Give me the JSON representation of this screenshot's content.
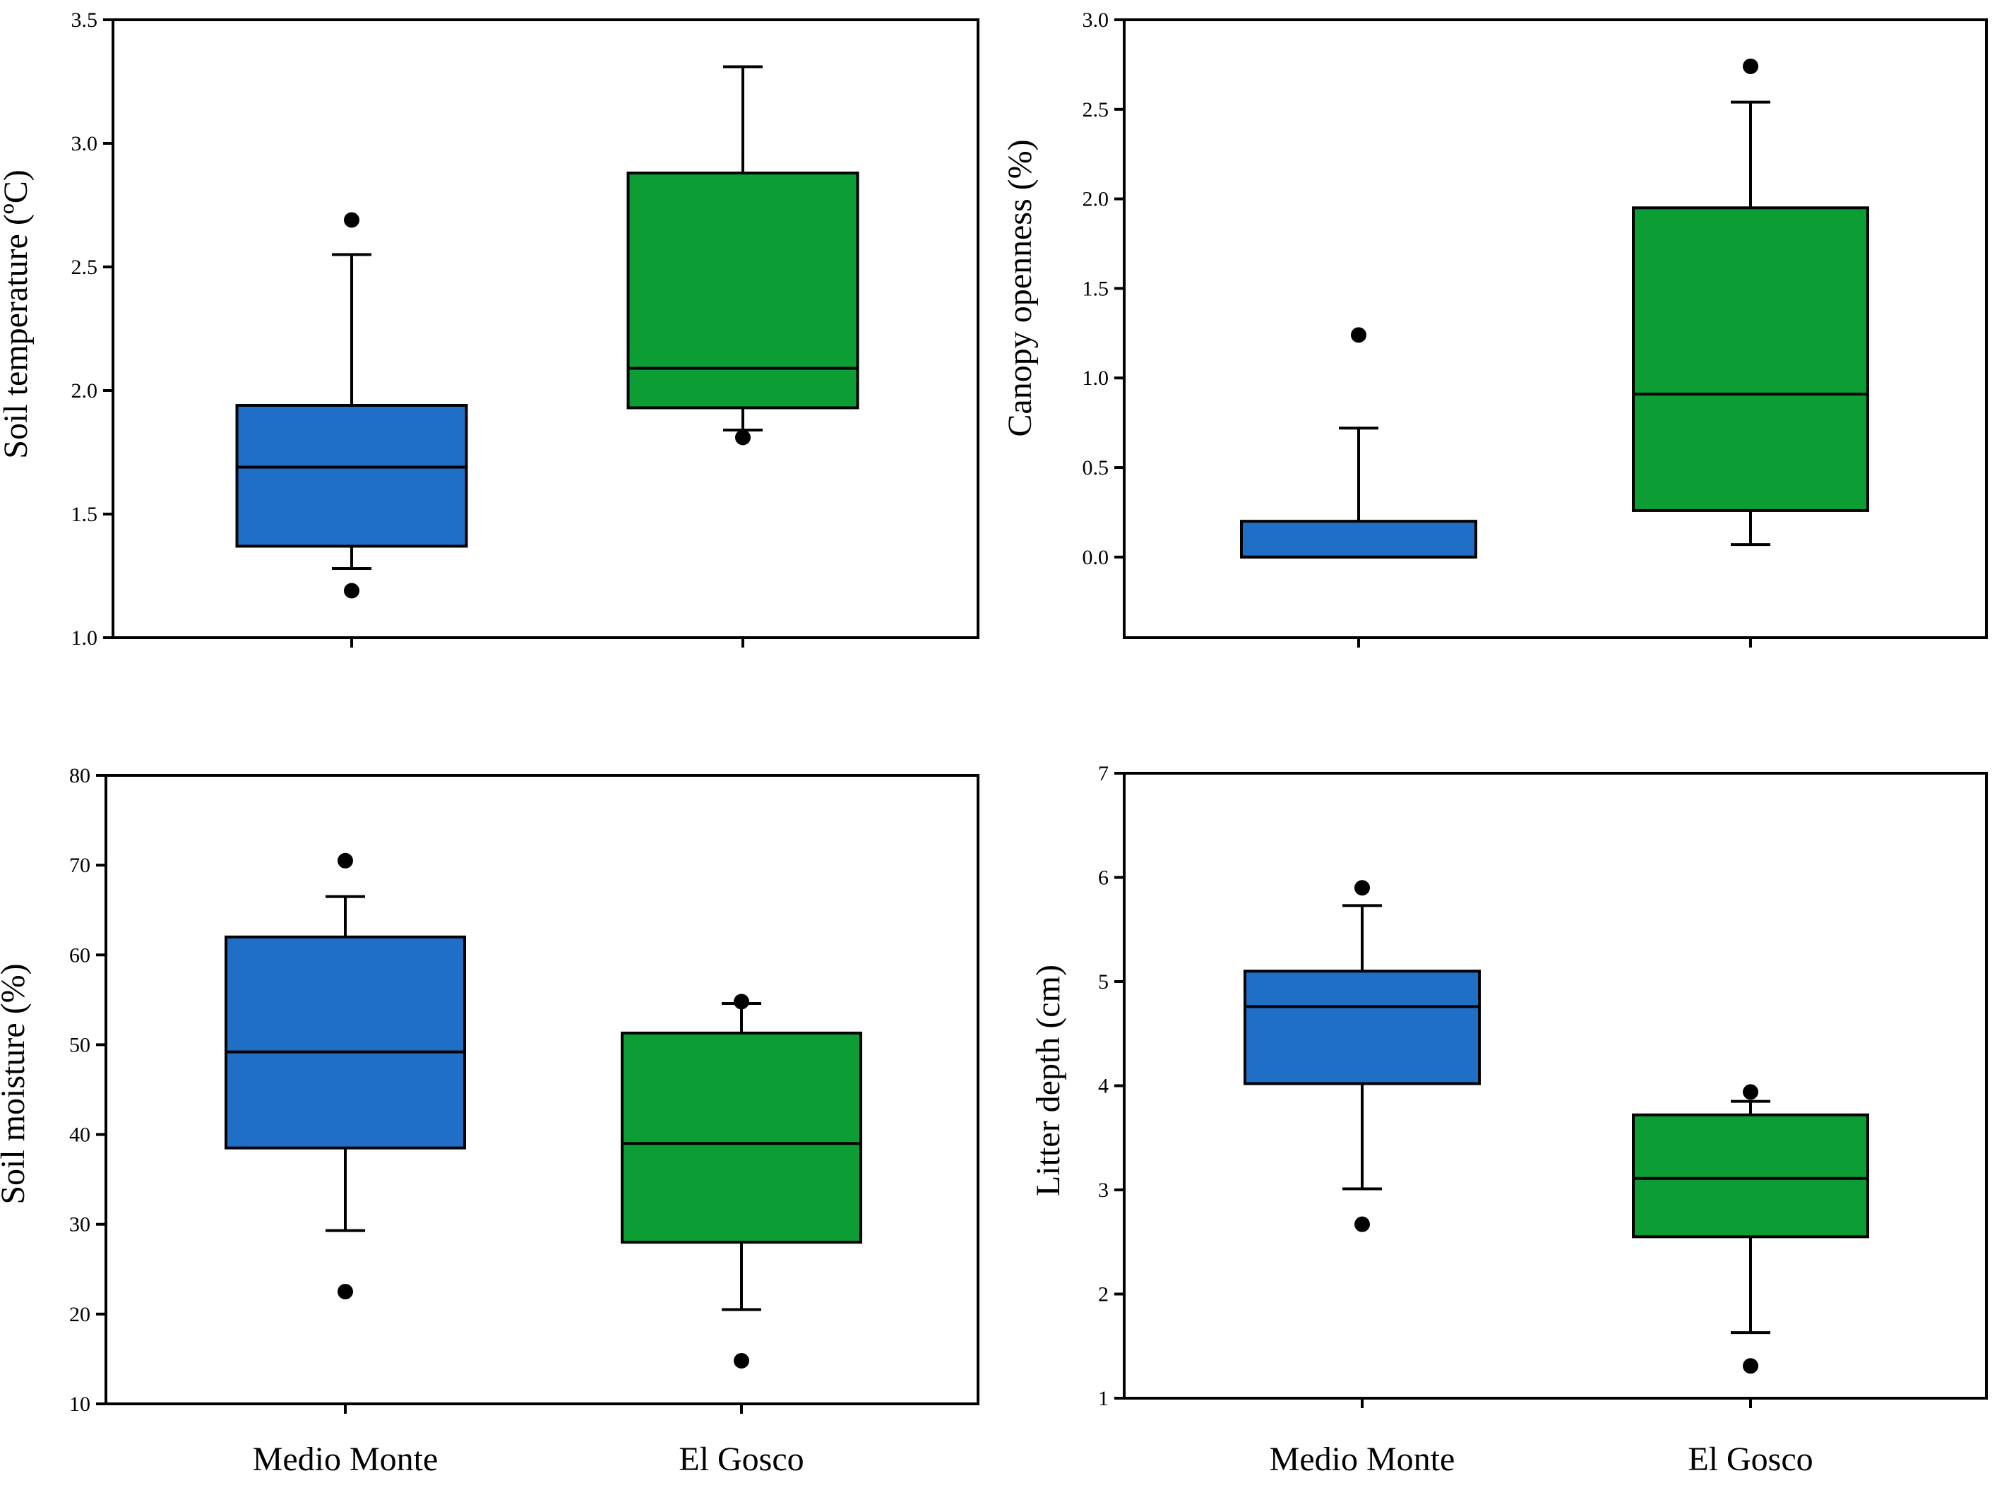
{
  "chart_data": [
    {
      "type": "box",
      "ylabel": "Soil temperature (ºC)",
      "ylim": [
        1.0,
        3.5
      ],
      "yticks": [
        "1.0",
        "1.5",
        "2.0",
        "2.5",
        "3.0",
        "3.5"
      ],
      "categories": [
        "Medio Monte",
        "El Gosco"
      ],
      "show_category_labels": false,
      "boxes": [
        {
          "category": "Medio Monte",
          "color": "#1f6fc6",
          "whisker_low": 1.28,
          "q1": 1.37,
          "median": 1.69,
          "q3": 1.94,
          "whisker_high": 2.55,
          "outliers": [
            2.69,
            1.19
          ]
        },
        {
          "category": "El Gosco",
          "color": "#0c9e34",
          "whisker_low": 1.84,
          "q1": 1.93,
          "median": 2.09,
          "q3": 2.88,
          "whisker_high": 3.31,
          "outliers": [
            1.81
          ]
        }
      ]
    },
    {
      "type": "box",
      "ylabel": "Canopy openness (%)",
      "ylim": [
        -0.45,
        3.0
      ],
      "yticks": [
        "0.0",
        "0.5",
        "1.0",
        "1.5",
        "2.0",
        "2.5",
        "3.0"
      ],
      "categories": [
        "Medio Monte",
        "El Gosco"
      ],
      "show_category_labels": false,
      "boxes": [
        {
          "category": "Medio Monte",
          "color": "#1f6fc6",
          "whisker_low": 0.0,
          "q1": 0.0,
          "median": 0.0,
          "q3": 0.2,
          "whisker_high": 0.72,
          "outliers": [
            1.24
          ]
        },
        {
          "category": "El Gosco",
          "color": "#0c9e34",
          "whisker_low": 0.07,
          "q1": 0.26,
          "median": 0.91,
          "q3": 1.95,
          "whisker_high": 2.54,
          "outliers": [
            2.74
          ]
        }
      ]
    },
    {
      "type": "box",
      "ylabel": "Soil moisture (%)",
      "ylim": [
        10,
        80
      ],
      "yticks": [
        "10",
        "20",
        "30",
        "40",
        "50",
        "60",
        "70",
        "80"
      ],
      "categories": [
        "Medio Monte",
        "El Gosco"
      ],
      "show_category_labels": true,
      "boxes": [
        {
          "category": "Medio Monte",
          "color": "#1f6fc6",
          "whisker_low": 29.3,
          "q1": 38.5,
          "median": 49.2,
          "q3": 62.0,
          "whisker_high": 66.5,
          "outliers": [
            70.5,
            22.5
          ]
        },
        {
          "category": "El Gosco",
          "color": "#0c9e34",
          "whisker_low": 20.5,
          "q1": 28.0,
          "median": 39.0,
          "q3": 51.3,
          "whisker_high": 54.6,
          "outliers": [
            54.8,
            14.8
          ]
        }
      ]
    },
    {
      "type": "box",
      "ylabel": "Litter depth (cm)",
      "ylim": [
        1,
        7
      ],
      "yticks": [
        "1",
        "2",
        "3",
        "4",
        "5",
        "6",
        "7"
      ],
      "categories": [
        "Medio Monte",
        "El Gosco"
      ],
      "show_category_labels": true,
      "boxes": [
        {
          "category": "Medio Monte",
          "color": "#1f6fc6",
          "whisker_low": 3.01,
          "q1": 4.02,
          "median": 4.76,
          "q3": 5.1,
          "whisker_high": 5.73,
          "outliers": [
            5.9,
            2.67
          ]
        },
        {
          "category": "El Gosco",
          "color": "#0c9e34",
          "whisker_low": 1.63,
          "q1": 2.55,
          "median": 3.11,
          "q3": 3.72,
          "whisker_high": 3.85,
          "outliers": [
            3.94,
            1.31
          ]
        }
      ]
    }
  ]
}
